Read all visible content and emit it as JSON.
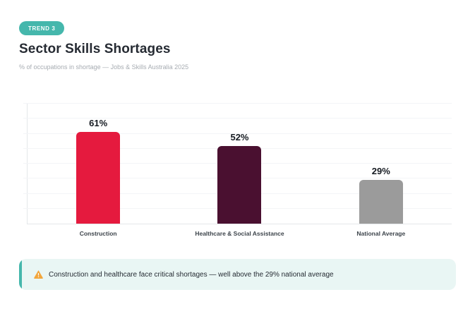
{
  "badge": {
    "label": "TREND 3"
  },
  "header": {
    "title": "Sector Skills Shortages",
    "subtitle": "% of occupations in shortage — Jobs & Skills Australia 2025"
  },
  "chart_data": {
    "type": "bar",
    "categories": [
      "Construction",
      "Healthcare & Social Assistance",
      "National Average"
    ],
    "values": [
      61,
      52,
      29
    ],
    "value_labels": [
      "61%",
      "52%",
      "29%"
    ],
    "bar_colors": [
      "#e51a3e",
      "#4a1030",
      "#9b9b9b"
    ],
    "title": "Sector Skills Shortages",
    "xlabel": "",
    "ylabel": "",
    "ylim": [
      0,
      80
    ],
    "grid": true,
    "gridline_step": 10,
    "legend": false,
    "source_note": "Jobs & Skills Australia 2025"
  },
  "note": {
    "icon": "warning-icon",
    "text": "Construction and healthcare face critical shortages — well above the 29% national average"
  },
  "colors": {
    "accent_teal": "#45b7ac",
    "note_bg": "#e9f6f4",
    "construction_red": "#e51a3e",
    "healthcare_maroon": "#4a1030",
    "average_gray": "#9b9b9b",
    "gridline": "#f3f5f7",
    "axis_line": "#e4e7ea"
  }
}
